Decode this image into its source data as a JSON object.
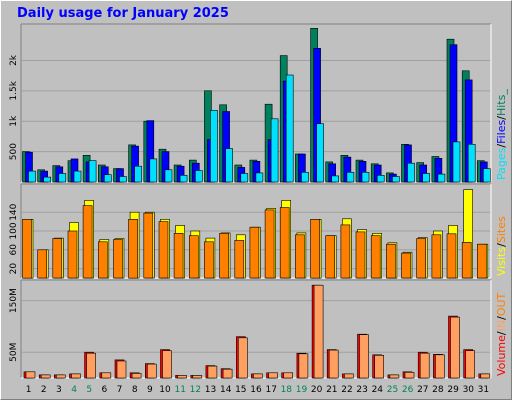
{
  "title": "Daily usage for January 2025",
  "colors": {
    "frame_bg": "#c0c0c0",
    "plot_bg": "#c0c0c0",
    "title": "#0000ff",
    "hits": "#00805c",
    "files": "#0000ff",
    "pages": "#00e0ff",
    "visits": "#ffff00",
    "sites": "#ff8000",
    "volume": "#ff0000",
    "in": "#ffa060",
    "out": "#ff8000",
    "day_weekday": "#000000",
    "day_weekend": "#00805c"
  },
  "days": [
    1,
    2,
    3,
    4,
    5,
    6,
    7,
    8,
    9,
    10,
    11,
    12,
    13,
    14,
    15,
    16,
    17,
    18,
    19,
    20,
    21,
    22,
    23,
    24,
    25,
    26,
    27,
    28,
    29,
    30,
    31
  ],
  "weekend_days": [
    4,
    5,
    11,
    12,
    18,
    19,
    25,
    26
  ],
  "chart_data": [
    {
      "type": "bar",
      "panel": "hits-files-pages",
      "x": [
        1,
        2,
        3,
        4,
        5,
        6,
        7,
        8,
        9,
        10,
        11,
        12,
        13,
        14,
        15,
        16,
        17,
        18,
        19,
        20,
        21,
        22,
        23,
        24,
        25,
        26,
        27,
        28,
        29,
        30,
        31
      ],
      "series": [
        {
          "name": "Hits",
          "values": [
            500,
            200,
            270,
            350,
            440,
            280,
            220,
            610,
            1000,
            540,
            280,
            360,
            1500,
            1270,
            280,
            360,
            1280,
            2080,
            460,
            2530,
            330,
            440,
            360,
            300,
            150,
            620,
            320,
            420,
            2350,
            1830,
            350
          ]
        },
        {
          "name": "Files",
          "values": [
            490,
            180,
            250,
            380,
            330,
            250,
            220,
            590,
            1010,
            500,
            260,
            310,
            700,
            1160,
            240,
            340,
            700,
            1660,
            460,
            2200,
            300,
            410,
            340,
            280,
            130,
            610,
            280,
            390,
            2260,
            1680,
            330
          ]
        },
        {
          "name": "Pages",
          "values": [
            180,
            80,
            140,
            180,
            350,
            120,
            90,
            260,
            380,
            200,
            110,
            190,
            1180,
            550,
            140,
            150,
            1040,
            1760,
            160,
            960,
            100,
            160,
            160,
            110,
            90,
            310,
            140,
            130,
            660,
            620,
            220
          ]
        }
      ],
      "yticks": [
        "500",
        "1k",
        "1.5k",
        "2k"
      ],
      "ylim": [
        0,
        2600
      ],
      "legend": "right, vertical",
      "legend_labels": [
        "Pages",
        "Files",
        "Hits_"
      ],
      "legend_separator": "/",
      "grid": true
    },
    {
      "type": "bar",
      "panel": "visits-sites",
      "x": [
        1,
        2,
        3,
        4,
        5,
        6,
        7,
        8,
        9,
        10,
        11,
        12,
        13,
        14,
        15,
        16,
        17,
        18,
        19,
        20,
        21,
        22,
        23,
        24,
        25,
        26,
        27,
        28,
        29,
        30,
        31
      ],
      "series": [
        {
          "name": "Visits",
          "values": [
            125,
            60,
            85,
            118,
            165,
            82,
            84,
            140,
            140,
            125,
            112,
            100,
            85,
            96,
            92,
            108,
            148,
            165,
            96,
            125,
            90,
            126,
            103,
            95,
            75,
            55,
            86,
            100,
            112,
            188,
            72
          ]
        },
        {
          "name": "Sites",
          "values": [
            125,
            60,
            84,
            100,
            154,
            77,
            82,
            125,
            138,
            120,
            95,
            90,
            77,
            95,
            80,
            108,
            145,
            150,
            92,
            125,
            90,
            113,
            98,
            90,
            72,
            53,
            84,
            92,
            94,
            76,
            72
          ]
        }
      ],
      "yticks": [
        "20",
        "60",
        "100",
        "140"
      ],
      "ylim": [
        0,
        200
      ],
      "legend": "right, vertical",
      "legend_labels": [
        "Visits",
        "Sites"
      ],
      "legend_separator": "/",
      "grid": true
    },
    {
      "type": "bar",
      "panel": "volume",
      "x": [
        1,
        2,
        3,
        4,
        5,
        6,
        7,
        8,
        9,
        10,
        11,
        12,
        13,
        14,
        15,
        16,
        17,
        18,
        19,
        20,
        21,
        22,
        23,
        24,
        25,
        26,
        27,
        28,
        29,
        30,
        31
      ],
      "series": [
        {
          "name": "Volume",
          "values": [
            12,
            6,
            6,
            8,
            50,
            10,
            35,
            10,
            28,
            55,
            5,
            5,
            24,
            18,
            80,
            8,
            10,
            10,
            48,
            180,
            55,
            8,
            85,
            45,
            6,
            12,
            50,
            46,
            120,
            55,
            8
          ]
        },
        {
          "name": "IN",
          "values": [
            12,
            6,
            6,
            8,
            48,
            10,
            33,
            9,
            27,
            53,
            5,
            5,
            23,
            17,
            78,
            8,
            10,
            10,
            47,
            180,
            54,
            8,
            84,
            44,
            6,
            11,
            48,
            45,
            118,
            53,
            8
          ]
        },
        {
          "name": "OUT",
          "values": [
            1,
            1,
            1,
            1,
            3,
            1,
            2,
            1,
            2,
            3,
            1,
            1,
            2,
            1,
            4,
            1,
            1,
            1,
            3,
            10,
            3,
            1,
            5,
            3,
            1,
            1,
            3,
            3,
            7,
            3,
            1
          ]
        }
      ],
      "yticks": [
        "50M",
        "150M"
      ],
      "ylim": [
        0,
        190
      ],
      "legend": "right, vertical",
      "legend_labels": [
        "Volume",
        "IN",
        "OUT"
      ],
      "legend_separator": "/",
      "grid": true
    }
  ]
}
